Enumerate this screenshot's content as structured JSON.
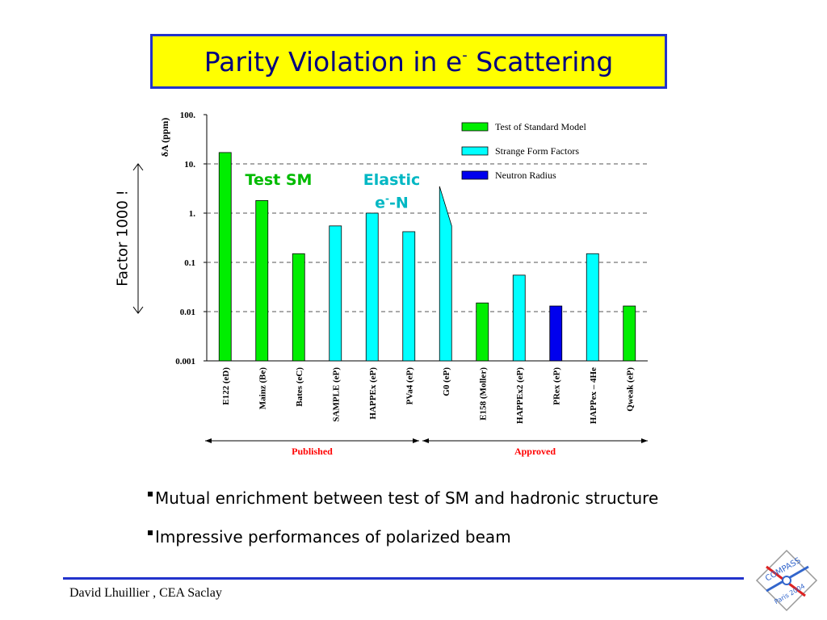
{
  "slide": {
    "title_main": "Parity Violation in e",
    "title_sup": "-",
    "title_tail": " Scattering",
    "side_label": "Factor 1000 !",
    "annotation_sm": "Test SM",
    "annotation_elastic_1": "Elastic",
    "annotation_elastic_2a": "e",
    "annotation_elastic_sup": "-",
    "annotation_elastic_2b": "-N",
    "bullets": [
      "Mutual enrichment between test of SM and hadronic structure",
      "Impressive  performances of polarized beam"
    ],
    "footer": "David Lhuillier , CEA Saclay",
    "logo_text_1": "COMPASS",
    "logo_text_2": "Paris 2004"
  },
  "chart_data": {
    "type": "bar",
    "ylabel": "δA (ppm)",
    "yscale": "log",
    "ylim": [
      0.001,
      100
    ],
    "yticks": [
      "100.",
      "10.",
      "1.",
      "0.1",
      "0.01",
      "0.001"
    ],
    "grid": true,
    "legend_position": "top-right",
    "categories": [
      "E122 (eD)",
      "Mainz (Be)",
      "Bates (eC)",
      "SAMPLE (eP)",
      "HAPPEx (eP)",
      "PVa4 (eP)",
      "G0 (eP)",
      "E158 (Moller)",
      "HAPPEx2 (eP)",
      "PRex (eP)",
      "HAPPex – 4He",
      "Qweak (eP)"
    ],
    "values": [
      17,
      1.8,
      0.15,
      0.55,
      1.0,
      0.42,
      3.5,
      0.015,
      0.055,
      0.013,
      0.15,
      0.013
    ],
    "g0_range": [
      0.55,
      3.5
    ],
    "series_types": [
      "Test of Standard Model",
      "Test of Standard Model",
      "Test of Standard Model",
      "Strange Form Factors",
      "Strange Form Factors",
      "Strange Form Factors",
      "Strange Form Factors",
      "Test of Standard Model",
      "Strange Form Factors",
      "Neutron Radius",
      "Strange Form Factors",
      "Test of Standard Model"
    ],
    "legend": [
      {
        "name": "Test of Standard Model",
        "color": "#00ee00"
      },
      {
        "name": "Strange Form Factors",
        "color": "#00ffff"
      },
      {
        "name": "Neutron Radius",
        "color": "#0000ee"
      }
    ],
    "groups": [
      {
        "label": "Published",
        "from": 0,
        "to": 5,
        "color": "#ff0000"
      },
      {
        "label": "Approved",
        "from": 6,
        "to": 11,
        "color": "#ff0000"
      }
    ]
  }
}
